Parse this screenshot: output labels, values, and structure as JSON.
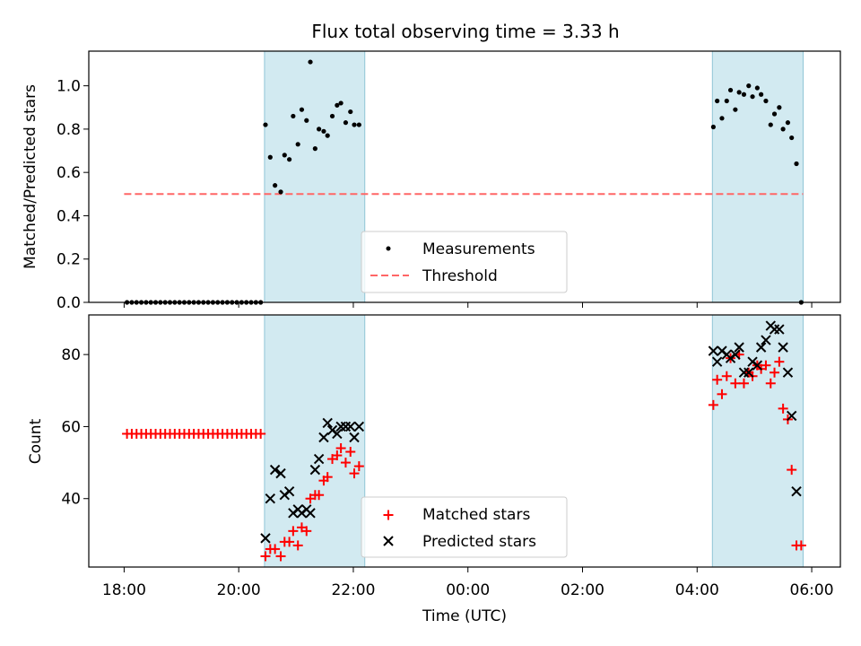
{
  "chart_data": {
    "type": "scatter",
    "title": "Flux total observing time = 3.33 h",
    "xlabel": "Time (UTC)",
    "x_unit": "time of night (UTC), 18:00 on day 1 through 06:00 on day 2",
    "x_range": [
      "17:23",
      "06:30"
    ],
    "x_ticks": [
      "18:00",
      "20:00",
      "22:00",
      "00:00",
      "02:00",
      "04:00",
      "06:00"
    ],
    "observing_windows": [
      {
        "start": "20:27",
        "end": "22:12"
      },
      {
        "start": "04:16",
        "end": "05:51"
      }
    ],
    "window_color": "#add8e6",
    "top_panel": {
      "ylabel": "Matched/Predicted stars",
      "ylim": [
        0,
        1.16
      ],
      "y_ticks": [
        "0.0",
        "0.2",
        "0.4",
        "0.6",
        "0.8",
        "1.0"
      ],
      "threshold": {
        "name": "Threshold",
        "value": 0.5,
        "color": "#ff6666",
        "from": "18:00",
        "to": "05:51"
      },
      "series": [
        {
          "name": "Measurements",
          "color": "#000000",
          "points": [
            [
              "18:03",
              0
            ],
            [
              "18:08",
              0
            ],
            [
              "18:13",
              0
            ],
            [
              "18:18",
              0
            ],
            [
              "18:23",
              0
            ],
            [
              "18:28",
              0
            ],
            [
              "18:33",
              0
            ],
            [
              "18:38",
              0
            ],
            [
              "18:43",
              0
            ],
            [
              "18:48",
              0
            ],
            [
              "18:53",
              0
            ],
            [
              "18:58",
              0
            ],
            [
              "19:03",
              0
            ],
            [
              "19:08",
              0
            ],
            [
              "19:13",
              0
            ],
            [
              "19:18",
              0
            ],
            [
              "19:23",
              0
            ],
            [
              "19:28",
              0
            ],
            [
              "19:33",
              0
            ],
            [
              "19:38",
              0
            ],
            [
              "19:43",
              0
            ],
            [
              "19:48",
              0
            ],
            [
              "19:53",
              0
            ],
            [
              "19:58",
              0
            ],
            [
              "20:03",
              0
            ],
            [
              "20:08",
              0
            ],
            [
              "20:13",
              0
            ],
            [
              "20:18",
              0
            ],
            [
              "20:23",
              0
            ],
            [
              "20:28",
              0.82
            ],
            [
              "20:33",
              0.67
            ],
            [
              "20:38",
              0.54
            ],
            [
              "20:44",
              0.51
            ],
            [
              "20:48",
              0.68
            ],
            [
              "20:53",
              0.66
            ],
            [
              "20:57",
              0.86
            ],
            [
              "21:02",
              0.73
            ],
            [
              "21:06",
              0.89
            ],
            [
              "21:11",
              0.84
            ],
            [
              "21:15",
              1.11
            ],
            [
              "21:20",
              0.71
            ],
            [
              "21:24",
              0.8
            ],
            [
              "21:29",
              0.79
            ],
            [
              "21:33",
              0.77
            ],
            [
              "21:38",
              0.86
            ],
            [
              "21:43",
              0.91
            ],
            [
              "21:47",
              0.92
            ],
            [
              "21:52",
              0.83
            ],
            [
              "21:57",
              0.88
            ],
            [
              "22:01",
              0.82
            ],
            [
              "22:06",
              0.82
            ],
            [
              "04:17",
              0.81
            ],
            [
              "04:21",
              0.93
            ],
            [
              "04:26",
              0.85
            ],
            [
              "04:31",
              0.93
            ],
            [
              "04:35",
              0.98
            ],
            [
              "04:40",
              0.89
            ],
            [
              "04:44",
              0.97
            ],
            [
              "04:49",
              0.96
            ],
            [
              "04:54",
              1.0
            ],
            [
              "04:58",
              0.95
            ],
            [
              "05:03",
              0.99
            ],
            [
              "05:07",
              0.96
            ],
            [
              "05:12",
              0.93
            ],
            [
              "05:17",
              0.82
            ],
            [
              "05:21",
              0.87
            ],
            [
              "05:26",
              0.9
            ],
            [
              "05:30",
              0.8
            ],
            [
              "05:35",
              0.83
            ],
            [
              "05:39",
              0.76
            ],
            [
              "05:44",
              0.64
            ],
            [
              "05:49",
              0
            ]
          ]
        }
      ],
      "legend": {
        "placement": "lower center"
      }
    },
    "bottom_panel": {
      "ylabel": "Count",
      "ylim": [
        21,
        91
      ],
      "y_ticks": [
        "40",
        "60",
        "80"
      ],
      "series": [
        {
          "name": "Matched stars",
          "marker": "+",
          "color": "#ff0000",
          "points": [
            [
              "18:03",
              58
            ],
            [
              "18:08",
              58
            ],
            [
              "18:13",
              58
            ],
            [
              "18:18",
              58
            ],
            [
              "18:23",
              58
            ],
            [
              "18:28",
              58
            ],
            [
              "18:33",
              58
            ],
            [
              "18:38",
              58
            ],
            [
              "18:43",
              58
            ],
            [
              "18:48",
              58
            ],
            [
              "18:53",
              58
            ],
            [
              "18:58",
              58
            ],
            [
              "19:03",
              58
            ],
            [
              "19:08",
              58
            ],
            [
              "19:13",
              58
            ],
            [
              "19:18",
              58
            ],
            [
              "19:23",
              58
            ],
            [
              "19:28",
              58
            ],
            [
              "19:33",
              58
            ],
            [
              "19:38",
              58
            ],
            [
              "19:43",
              58
            ],
            [
              "19:48",
              58
            ],
            [
              "19:53",
              58
            ],
            [
              "19:58",
              58
            ],
            [
              "20:03",
              58
            ],
            [
              "20:08",
              58
            ],
            [
              "20:13",
              58
            ],
            [
              "20:18",
              58
            ],
            [
              "20:23",
              58
            ],
            [
              "20:28",
              24
            ],
            [
              "20:33",
              26
            ],
            [
              "20:38",
              26
            ],
            [
              "20:44",
              24
            ],
            [
              "20:48",
              28
            ],
            [
              "20:53",
              28
            ],
            [
              "20:57",
              31
            ],
            [
              "21:02",
              27
            ],
            [
              "21:06",
              32
            ],
            [
              "21:11",
              31
            ],
            [
              "21:15",
              40
            ],
            [
              "21:20",
              41
            ],
            [
              "21:24",
              41
            ],
            [
              "21:29",
              45
            ],
            [
              "21:33",
              46
            ],
            [
              "21:38",
              51
            ],
            [
              "21:43",
              52
            ],
            [
              "21:47",
              54
            ],
            [
              "21:52",
              50
            ],
            [
              "21:57",
              53
            ],
            [
              "22:01",
              47
            ],
            [
              "22:06",
              49
            ],
            [
              "04:17",
              66
            ],
            [
              "04:21",
              73
            ],
            [
              "04:26",
              69
            ],
            [
              "04:31",
              74
            ],
            [
              "04:35",
              79
            ],
            [
              "04:40",
              72
            ],
            [
              "04:44",
              80
            ],
            [
              "04:49",
              72
            ],
            [
              "04:54",
              75
            ],
            [
              "04:58",
              74
            ],
            [
              "05:03",
              77
            ],
            [
              "05:07",
              76
            ],
            [
              "05:12",
              77
            ],
            [
              "05:17",
              72
            ],
            [
              "05:21",
              75
            ],
            [
              "05:26",
              78
            ],
            [
              "05:30",
              65
            ],
            [
              "05:35",
              62
            ],
            [
              "05:39",
              48
            ],
            [
              "05:44",
              27
            ],
            [
              "05:49",
              27
            ]
          ]
        },
        {
          "name": "Predicted stars",
          "marker": "x",
          "color": "#000000",
          "points": [
            [
              "20:28",
              29
            ],
            [
              "20:33",
              40
            ],
            [
              "20:38",
              48
            ],
            [
              "20:44",
              47
            ],
            [
              "20:48",
              41
            ],
            [
              "20:53",
              42
            ],
            [
              "20:57",
              36
            ],
            [
              "21:02",
              37
            ],
            [
              "21:06",
              36
            ],
            [
              "21:11",
              37
            ],
            [
              "21:15",
              36
            ],
            [
              "21:20",
              48
            ],
            [
              "21:24",
              51
            ],
            [
              "21:29",
              57
            ],
            [
              "21:33",
              61
            ],
            [
              "21:38",
              59
            ],
            [
              "21:43",
              58
            ],
            [
              "21:47",
              60
            ],
            [
              "21:52",
              60
            ],
            [
              "21:57",
              60
            ],
            [
              "22:01",
              57
            ],
            [
              "22:06",
              60
            ],
            [
              "04:17",
              81
            ],
            [
              "04:21",
              78
            ],
            [
              "04:26",
              81
            ],
            [
              "04:31",
              80
            ],
            [
              "04:35",
              79
            ],
            [
              "04:40",
              80
            ],
            [
              "04:44",
              82
            ],
            [
              "04:49",
              75
            ],
            [
              "04:54",
              75
            ],
            [
              "04:58",
              78
            ],
            [
              "05:03",
              77
            ],
            [
              "05:07",
              82
            ],
            [
              "05:12",
              84
            ],
            [
              "05:17",
              88
            ],
            [
              "05:21",
              87
            ],
            [
              "05:26",
              87
            ],
            [
              "05:30",
              82
            ],
            [
              "05:35",
              75
            ],
            [
              "05:39",
              63
            ],
            [
              "05:44",
              42
            ]
          ]
        }
      ],
      "legend": {
        "placement": "lower center"
      }
    }
  }
}
